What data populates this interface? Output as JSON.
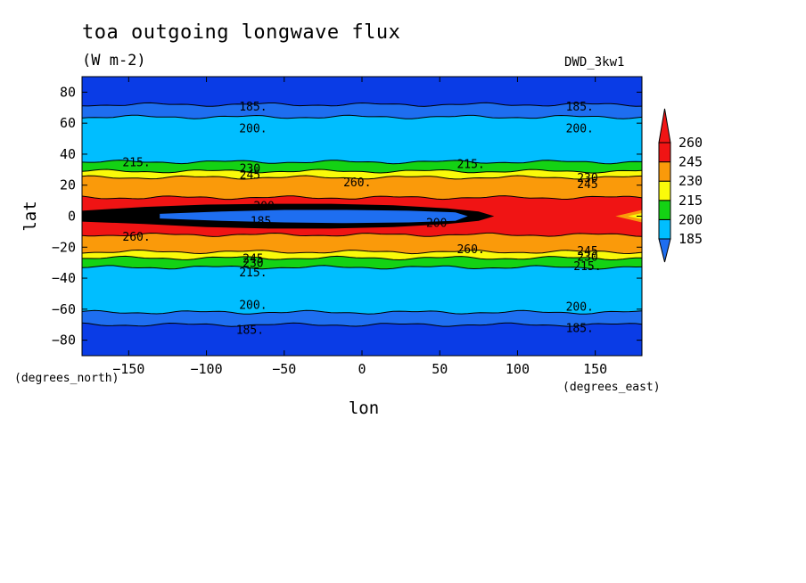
{
  "chart_data": {
    "type": "contour_map",
    "title": "toa outgoing longwave flux",
    "units": "(W m-2)",
    "run_label": "DWD_3kw1",
    "xlabel": "lon",
    "ylabel": "lat",
    "x_unit_label": "(degrees_east)",
    "y_unit_label": "(degrees_north)",
    "xlim": [
      -180,
      180
    ],
    "ylim": [
      -90,
      90
    ],
    "x_ticks": [
      -150,
      -100,
      -50,
      0,
      50,
      100,
      150
    ],
    "y_ticks": [
      -80,
      -60,
      -40,
      -20,
      0,
      20,
      40,
      60,
      80
    ],
    "x_tick_labels": [
      "−150",
      "−100",
      "−50",
      "0",
      "50",
      "100",
      "150"
    ],
    "y_tick_labels": [
      "−80",
      "−60",
      "−40",
      "−20",
      "0",
      "20",
      "40",
      "60",
      "80"
    ],
    "colorbar": {
      "levels": [
        185,
        200,
        215,
        230,
        245,
        260
      ],
      "labels": [
        "185",
        "200",
        "215",
        "230",
        "245",
        "260"
      ],
      "colors": [
        "#1e6ef0",
        "#00beff",
        "#14d214",
        "#fafa0a",
        "#fa9a0a",
        "#f01414"
      ],
      "below_color": "#0a3ce6",
      "above_color": "#f01414"
    },
    "bands": [
      {
        "lat_from": 90,
        "lat_to": 72,
        "value_range": "<185",
        "color": "#0a3ce6"
      },
      {
        "lat_from": 72,
        "lat_to": 64,
        "value_range": "185-200",
        "color": "#1e6ef0"
      },
      {
        "lat_from": 64,
        "lat_to": 35,
        "value_range": "200-215",
        "color": "#00beff"
      },
      {
        "lat_from": 35,
        "lat_to": 29,
        "value_range": "215-230",
        "color": "#14d214"
      },
      {
        "lat_from": 29,
        "lat_to": 25,
        "value_range": "230-245",
        "color": "#fafa0a"
      },
      {
        "lat_from": 25,
        "lat_to": 12,
        "value_range": "245-260",
        "color": "#fa9a0a"
      },
      {
        "lat_from": 12,
        "lat_to": -12,
        "value_range": ">260",
        "color": "#f01414"
      },
      {
        "lat_from": -12,
        "lat_to": -23,
        "value_range": "245-260",
        "color": "#fa9a0a"
      },
      {
        "lat_from": -23,
        "lat_to": -27,
        "value_range": "230-245",
        "color": "#fafa0a"
      },
      {
        "lat_from": -27,
        "lat_to": -33,
        "value_range": "215-230",
        "color": "#14d214"
      },
      {
        "lat_from": -33,
        "lat_to": -62,
        "value_range": "200-215",
        "color": "#00beff"
      },
      {
        "lat_from": -62,
        "lat_to": -70,
        "value_range": "185-200",
        "color": "#1e6ef0"
      },
      {
        "lat_from": -70,
        "lat_to": -90,
        "value_range": "<185",
        "color": "#0a3ce6"
      }
    ],
    "contour_labels": [
      {
        "text": "185.",
        "lon": -70,
        "lat": 71
      },
      {
        "text": "185.",
        "lon": 140,
        "lat": 71
      },
      {
        "text": "200.",
        "lon": -70,
        "lat": 57
      },
      {
        "text": "200.",
        "lon": 140,
        "lat": 57
      },
      {
        "text": "215.",
        "lon": -145,
        "lat": 35
      },
      {
        "text": "215.",
        "lon": 70,
        "lat": 34
      },
      {
        "text": "230",
        "lon": -72,
        "lat": 31
      },
      {
        "text": "245",
        "lon": -72,
        "lat": 27
      },
      {
        "text": "230",
        "lon": 145,
        "lat": 25
      },
      {
        "text": "245",
        "lon": 145,
        "lat": 21
      },
      {
        "text": "260.",
        "lon": -3,
        "lat": 22
      },
      {
        "text": "200",
        "lon": -63,
        "lat": 7
      },
      {
        "text": "185",
        "lon": -65,
        "lat": -3
      },
      {
        "text": "200",
        "lon": 48,
        "lat": -4
      },
      {
        "text": "260.",
        "lon": -145,
        "lat": -13
      },
      {
        "text": "260.",
        "lon": 70,
        "lat": -21
      },
      {
        "text": "245",
        "lon": -70,
        "lat": -27
      },
      {
        "text": "230",
        "lon": -70,
        "lat": -30
      },
      {
        "text": "245",
        "lon": 145,
        "lat": -22
      },
      {
        "text": "230",
        "lon": 145,
        "lat": -26
      },
      {
        "text": "215.",
        "lon": -70,
        "lat": -36
      },
      {
        "text": "215.",
        "lon": 145,
        "lat": -32
      },
      {
        "text": "200.",
        "lon": -70,
        "lat": -57
      },
      {
        "text": "200.",
        "lon": 140,
        "lat": -58
      },
      {
        "text": "185.",
        "lon": -72,
        "lat": -73
      },
      {
        "text": "185.",
        "lon": 140,
        "lat": -72
      }
    ]
  }
}
